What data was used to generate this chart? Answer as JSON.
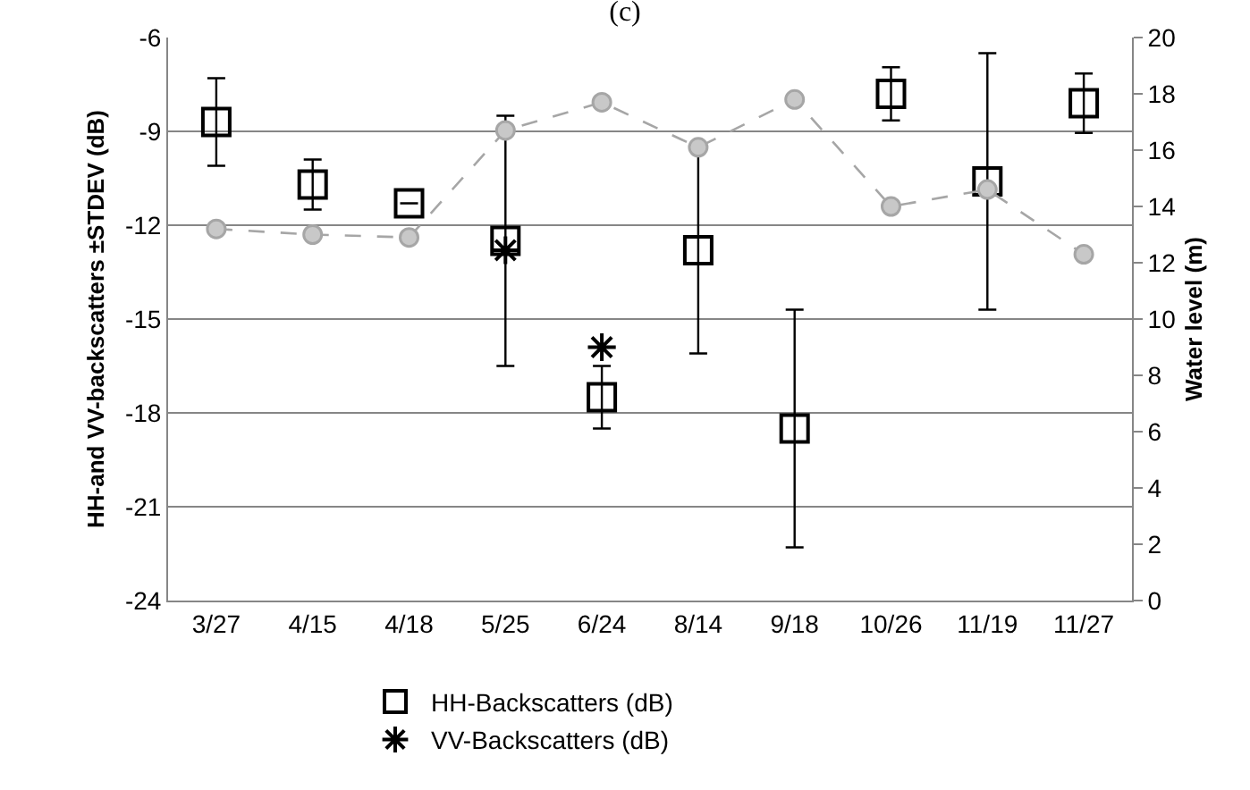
{
  "chart_data": {
    "type": "scatter",
    "title": "(c)",
    "ylabel": "HH-and VV-backscatters ±STDEV (dB)",
    "y2label": "Water level (m)",
    "categories": [
      "3/27",
      "4/15",
      "4/18",
      "5/25",
      "6/24",
      "8/14",
      "9/18",
      "10/26",
      "11/19",
      "11/27"
    ],
    "series": [
      {
        "name": "HH-Backscatters (dB)",
        "color": "#000000",
        "marker": "square",
        "values": [
          -8.7,
          -10.7,
          -11.3,
          -12.5,
          -17.5,
          -12.8,
          -18.5,
          -7.8,
          -10.6,
          -8.1
        ],
        "errors": [
          1.4,
          0.8,
          null,
          4.0,
          1.0,
          3.3,
          3.8,
          0.85,
          4.1,
          0.95
        ]
      },
      {
        "name": "VV-Backscatters (dB)",
        "color": "#000000",
        "marker": "cross",
        "values": [
          null,
          null,
          null,
          -12.8,
          -15.9,
          null,
          null,
          null,
          null,
          null
        ]
      },
      {
        "type": "line",
        "axis": "y2",
        "color": "#a6a6a6",
        "marker": "circle",
        "line_style": "dashed",
        "values": [
          13.2,
          13.0,
          12.9,
          16.7,
          17.7,
          16.1,
          17.8,
          14.0,
          14.6,
          12.3
        ]
      }
    ],
    "ylim": [
      -24,
      -6
    ],
    "yticks": [
      -24,
      -21,
      -18,
      -15,
      -12,
      -9,
      -6
    ],
    "y2lim": [
      0,
      20
    ],
    "y2ticks": [
      0,
      2,
      4,
      6,
      8,
      10,
      12,
      14,
      16,
      18,
      20
    ],
    "grid": "y",
    "legend": "bottom"
  }
}
